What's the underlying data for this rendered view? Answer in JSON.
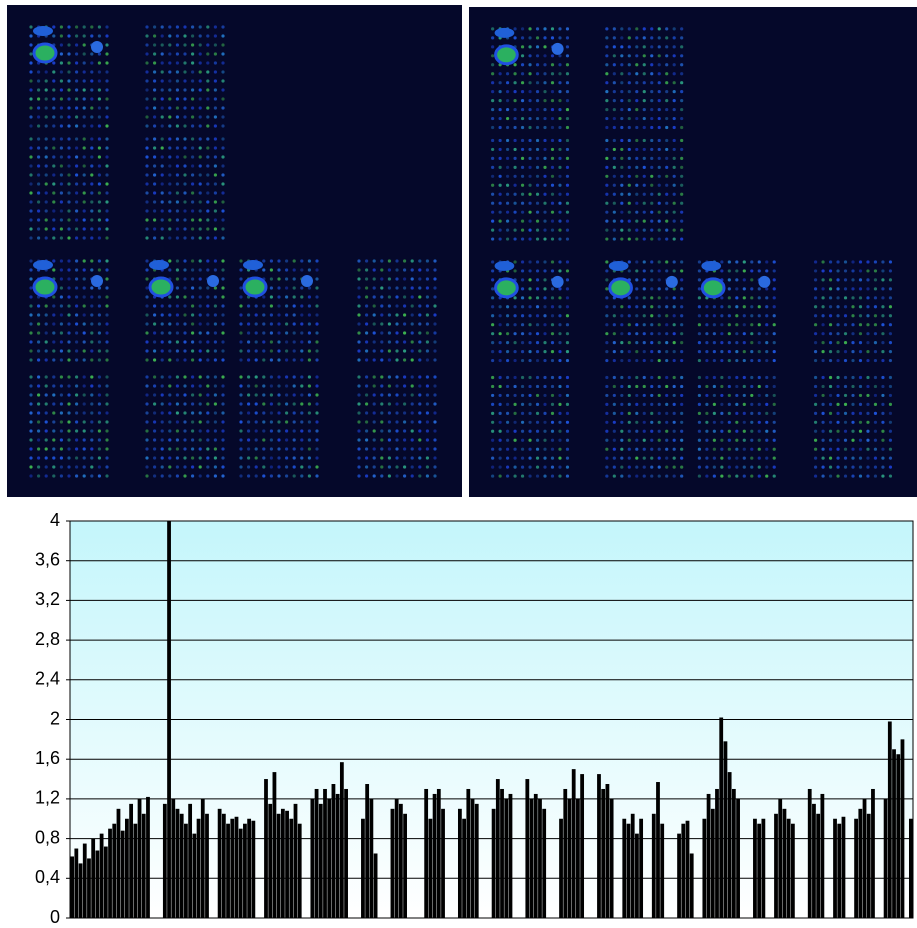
{
  "chart_data": {
    "type": "bar",
    "color": "#000000",
    "grid": true,
    "ylim": [
      0,
      4
    ],
    "yticks": [
      0,
      {
        "value": 0.4,
        "label": "0,4"
      },
      {
        "value": 0.8,
        "label": "0,8"
      },
      {
        "value": 1.2,
        "label": "1,2"
      },
      {
        "value": 1.6,
        "label": "1,6"
      },
      2,
      {
        "value": 2.4,
        "label": "2,4"
      },
      {
        "value": 2.8,
        "label": "2,8"
      },
      {
        "value": 3.2,
        "label": "3,2"
      },
      {
        "value": 3.6,
        "label": "3,6"
      },
      4
    ],
    "values": [
      0.62,
      0.7,
      0.55,
      0.75,
      0.6,
      0.8,
      0.68,
      0.85,
      0.72,
      0.9,
      0.95,
      1.1,
      0.88,
      1.0,
      1.15,
      0.95,
      1.2,
      1.05,
      1.22,
      null,
      null,
      null,
      1.15,
      4,
      1.2,
      1.1,
      1.05,
      0.95,
      1.15,
      0.85,
      1.0,
      1.2,
      1.05,
      null,
      null,
      1.1,
      1.05,
      0.95,
      1.0,
      1.02,
      0.9,
      0.95,
      1.0,
      0.98,
      null,
      null,
      1.4,
      1.15,
      1.47,
      1.05,
      1.1,
      1.08,
      1.0,
      1.15,
      0.95,
      null,
      null,
      1.2,
      1.3,
      1.15,
      1.3,
      1.2,
      1.35,
      1.25,
      1.57,
      1.3,
      null,
      null,
      null,
      1.0,
      1.35,
      1.2,
      0.65,
      null,
      null,
      null,
      1.1,
      1.2,
      1.15,
      1.05,
      null,
      null,
      null,
      null,
      1.3,
      1.0,
      1.25,
      1.3,
      1.1,
      null,
      null,
      null,
      1.1,
      1.0,
      1.3,
      1.2,
      1.15,
      null,
      null,
      null,
      1.1,
      1.4,
      1.3,
      1.2,
      1.25,
      null,
      null,
      null,
      1.4,
      1.2,
      1.25,
      1.2,
      1.1,
      null,
      null,
      null,
      1.0,
      1.3,
      1.2,
      1.5,
      1.2,
      1.45,
      null,
      null,
      null,
      1.45,
      1.3,
      1.35,
      1.2,
      null,
      null,
      1.0,
      0.95,
      1.05,
      0.85,
      1.0,
      null,
      null,
      1.05,
      1.37,
      0.95,
      null,
      null,
      null,
      0.85,
      0.95,
      0.98,
      0.65,
      null,
      null,
      1.0,
      1.25,
      1.1,
      1.3,
      2.02,
      1.78,
      1.47,
      1.3,
      1.2,
      null,
      null,
      null,
      1.0,
      0.95,
      1.0,
      null,
      null,
      1.05,
      1.2,
      1.1,
      1.0,
      0.95,
      null,
      null,
      null,
      1.3,
      1.15,
      1.05,
      1.25,
      null,
      null,
      1.0,
      0.95,
      1.02,
      null,
      null,
      1.0,
      1.1,
      1.2,
      1.05,
      1.3,
      null,
      null,
      1.2,
      1.98,
      1.7,
      1.65,
      1.8,
      null,
      1.0
    ]
  }
}
